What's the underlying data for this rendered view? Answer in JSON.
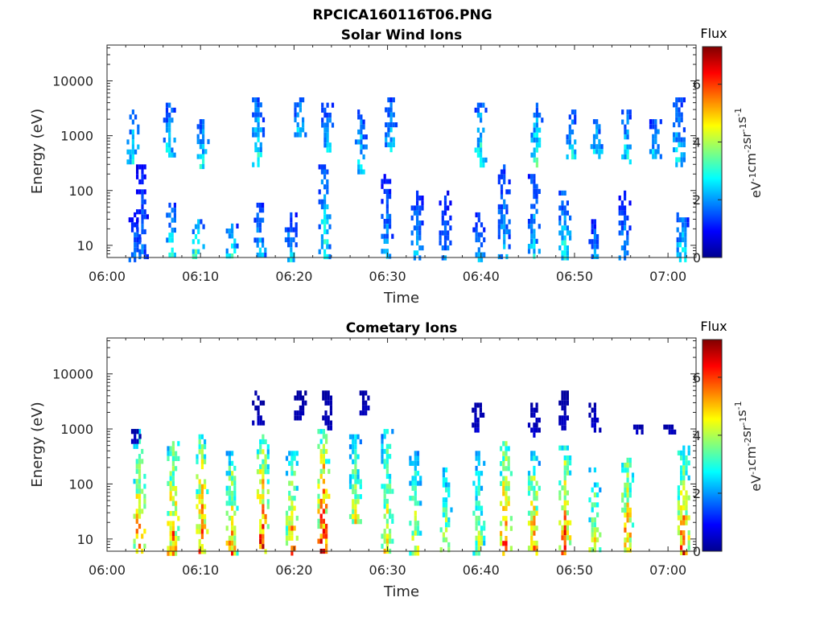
{
  "figure": {
    "filename": "RPCICA160116T06.PNG"
  },
  "chart_data": [
    {
      "type": "heatmap",
      "title": "Solar Wind Ions",
      "xlabel": "Time",
      "ylabel": "Energy (eV)",
      "x_ticks": [
        "06:00",
        "06:10",
        "06:20",
        "06:30",
        "06:40",
        "06:50",
        "07:00"
      ],
      "x_range_minutes": [
        0,
        63
      ],
      "y_scale": "log",
      "y_ticks": [
        "10",
        "100",
        "1000",
        "10000"
      ],
      "y_range_ev": [
        6,
        45000
      ],
      "colorbar": {
        "title": "Flux",
        "unit": "eV-1cm-2sr-1s-1",
        "ticks": [
          "0",
          "2",
          "4",
          "6"
        ],
        "range": [
          0,
          7.3
        ],
        "colormap": "jet"
      },
      "grid": false,
      "bursts": [
        {
          "t": 2.8,
          "ev": [
            6,
            40
          ],
          "flux": 2.0
        },
        {
          "t": 2.6,
          "ev": [
            300,
            3000
          ],
          "flux": 3.0
        },
        {
          "t": 3.6,
          "ev": [
            6,
            300
          ],
          "flux": 1.8
        },
        {
          "t": 6.8,
          "ev": [
            6,
            60
          ],
          "flux": 3.0
        },
        {
          "t": 6.5,
          "ev": [
            400,
            4000
          ],
          "flux": 2.8
        },
        {
          "t": 9.6,
          "ev": [
            6,
            30
          ],
          "flux": 3.6
        },
        {
          "t": 10.1,
          "ev": [
            300,
            2000
          ],
          "flux": 2.8
        },
        {
          "t": 13.2,
          "ev": [
            6,
            25
          ],
          "flux": 3.2
        },
        {
          "t": 16.2,
          "ev": [
            6,
            60
          ],
          "flux": 2.6
        },
        {
          "t": 16.0,
          "ev": [
            300,
            5000
          ],
          "flux": 3.0
        },
        {
          "t": 19.5,
          "ev": [
            6,
            40
          ],
          "flux": 2.5
        },
        {
          "t": 20.5,
          "ev": [
            1000,
            5000
          ],
          "flux": 2.8
        },
        {
          "t": 23.1,
          "ev": [
            6,
            300
          ],
          "flux": 3.0
        },
        {
          "t": 23.4,
          "ev": [
            600,
            4000
          ],
          "flux": 2.6
        },
        {
          "t": 27.0,
          "ev": [
            200,
            3000
          ],
          "flux": 2.8
        },
        {
          "t": 29.8,
          "ev": [
            6,
            200
          ],
          "flux": 2.2
        },
        {
          "t": 30.2,
          "ev": [
            600,
            5000
          ],
          "flux": 2.6
        },
        {
          "t": 33.0,
          "ev": [
            6,
            100
          ],
          "flux": 2.4
        },
        {
          "t": 36.0,
          "ev": [
            6,
            100
          ],
          "flux": 2.0
        },
        {
          "t": 39.6,
          "ev": [
            6,
            40
          ],
          "flux": 2.2
        },
        {
          "t": 39.8,
          "ev": [
            300,
            4000
          ],
          "flux": 3.2
        },
        {
          "t": 42.3,
          "ev": [
            6,
            300
          ],
          "flux": 2.4
        },
        {
          "t": 45.5,
          "ev": [
            6,
            200
          ],
          "flux": 2.6
        },
        {
          "t": 45.8,
          "ev": [
            300,
            4000
          ],
          "flux": 3.2
        },
        {
          "t": 48.8,
          "ev": [
            6,
            100
          ],
          "flux": 3.0
        },
        {
          "t": 49.6,
          "ev": [
            400,
            3000
          ],
          "flux": 3.0
        },
        {
          "t": 52.0,
          "ev": [
            6,
            30
          ],
          "flux": 2.2
        },
        {
          "t": 52.2,
          "ev": [
            400,
            2000
          ],
          "flux": 3.0
        },
        {
          "t": 55.2,
          "ev": [
            6,
            100
          ],
          "flux": 2.2
        },
        {
          "t": 55.5,
          "ev": [
            300,
            3000
          ],
          "flux": 3.0
        },
        {
          "t": 58.5,
          "ev": [
            400,
            2000
          ],
          "flux": 2.8
        },
        {
          "t": 61.4,
          "ev": [
            6,
            40
          ],
          "flux": 3.0
        },
        {
          "t": 61.0,
          "ev": [
            300,
            5000
          ],
          "flux": 2.8
        }
      ]
    },
    {
      "type": "heatmap",
      "title": "Cometary Ions",
      "xlabel": "Time",
      "ylabel": "Energy (eV)",
      "x_ticks": [
        "06:00",
        "06:10",
        "06:20",
        "06:30",
        "06:40",
        "06:50",
        "07:00"
      ],
      "x_range_minutes": [
        0,
        63
      ],
      "y_scale": "log",
      "y_ticks": [
        "10",
        "100",
        "1000",
        "10000"
      ],
      "y_range_ev": [
        6,
        45000
      ],
      "colorbar": {
        "title": "Flux",
        "unit": "eV-1cm-2sr-1s-1",
        "ticks": [
          "0",
          "2",
          "4",
          "6"
        ],
        "range": [
          0,
          7.3
        ],
        "colormap": "jet"
      },
      "grid": false,
      "bursts": [
        {
          "t": 3.3,
          "ev": [
            6,
            1000
          ],
          "flux": 5.6
        },
        {
          "t": 6.9,
          "ev": [
            6,
            600
          ],
          "flux": 5.8
        },
        {
          "t": 10.0,
          "ev": [
            6,
            800
          ],
          "flux": 6.0
        },
        {
          "t": 13.2,
          "ev": [
            6,
            400
          ],
          "flux": 5.4
        },
        {
          "t": 16.5,
          "ev": [
            6,
            800
          ],
          "flux": 6.3
        },
        {
          "t": 19.6,
          "ev": [
            6,
            400
          ],
          "flux": 5.6
        },
        {
          "t": 23.0,
          "ev": [
            6,
            1000
          ],
          "flux": 6.6
        },
        {
          "t": 26.4,
          "ev": [
            20,
            800
          ],
          "flux": 4.4
        },
        {
          "t": 29.8,
          "ev": [
            6,
            1000
          ],
          "flux": 4.8
        },
        {
          "t": 32.8,
          "ev": [
            6,
            400
          ],
          "flux": 4.6
        },
        {
          "t": 36.1,
          "ev": [
            6,
            200
          ],
          "flux": 4.4
        },
        {
          "t": 39.6,
          "ev": [
            6,
            400
          ],
          "flux": 4.2
        },
        {
          "t": 42.5,
          "ev": [
            6,
            600
          ],
          "flux": 6.0
        },
        {
          "t": 45.5,
          "ev": [
            6,
            400
          ],
          "flux": 5.6
        },
        {
          "t": 48.8,
          "ev": [
            6,
            500
          ],
          "flux": 6.0
        },
        {
          "t": 52.0,
          "ev": [
            6,
            200
          ],
          "flux": 4.6
        },
        {
          "t": 55.5,
          "ev": [
            6,
            300
          ],
          "flux": 5.8
        },
        {
          "t": 61.5,
          "ev": [
            6,
            500
          ],
          "flux": 5.8
        },
        {
          "t": 16.0,
          "ev": [
            1000,
            5000
          ],
          "flux": 0.5
        },
        {
          "t": 20.5,
          "ev": [
            1500,
            5000
          ],
          "flux": 0.5
        },
        {
          "t": 23.5,
          "ev": [
            1000,
            5000
          ],
          "flux": 0.5
        },
        {
          "t": 27.5,
          "ev": [
            2000,
            5000
          ],
          "flux": 0.5
        },
        {
          "t": 39.5,
          "ev": [
            1000,
            3000
          ],
          "flux": 0.6
        },
        {
          "t": 45.5,
          "ev": [
            700,
            3000
          ],
          "flux": 0.6
        },
        {
          "t": 48.8,
          "ev": [
            1000,
            5000
          ],
          "flux": 0.5
        },
        {
          "t": 52.0,
          "ev": [
            1000,
            3000
          ],
          "flux": 0.6
        },
        {
          "t": 2.8,
          "ev": [
            600,
            1000
          ],
          "flux": 0.6
        },
        {
          "t": 56.5,
          "ev": [
            800,
            1200
          ],
          "flux": 0.6
        },
        {
          "t": 60.0,
          "ev": [
            800,
            1200
          ],
          "flux": 0.6
        }
      ]
    }
  ]
}
